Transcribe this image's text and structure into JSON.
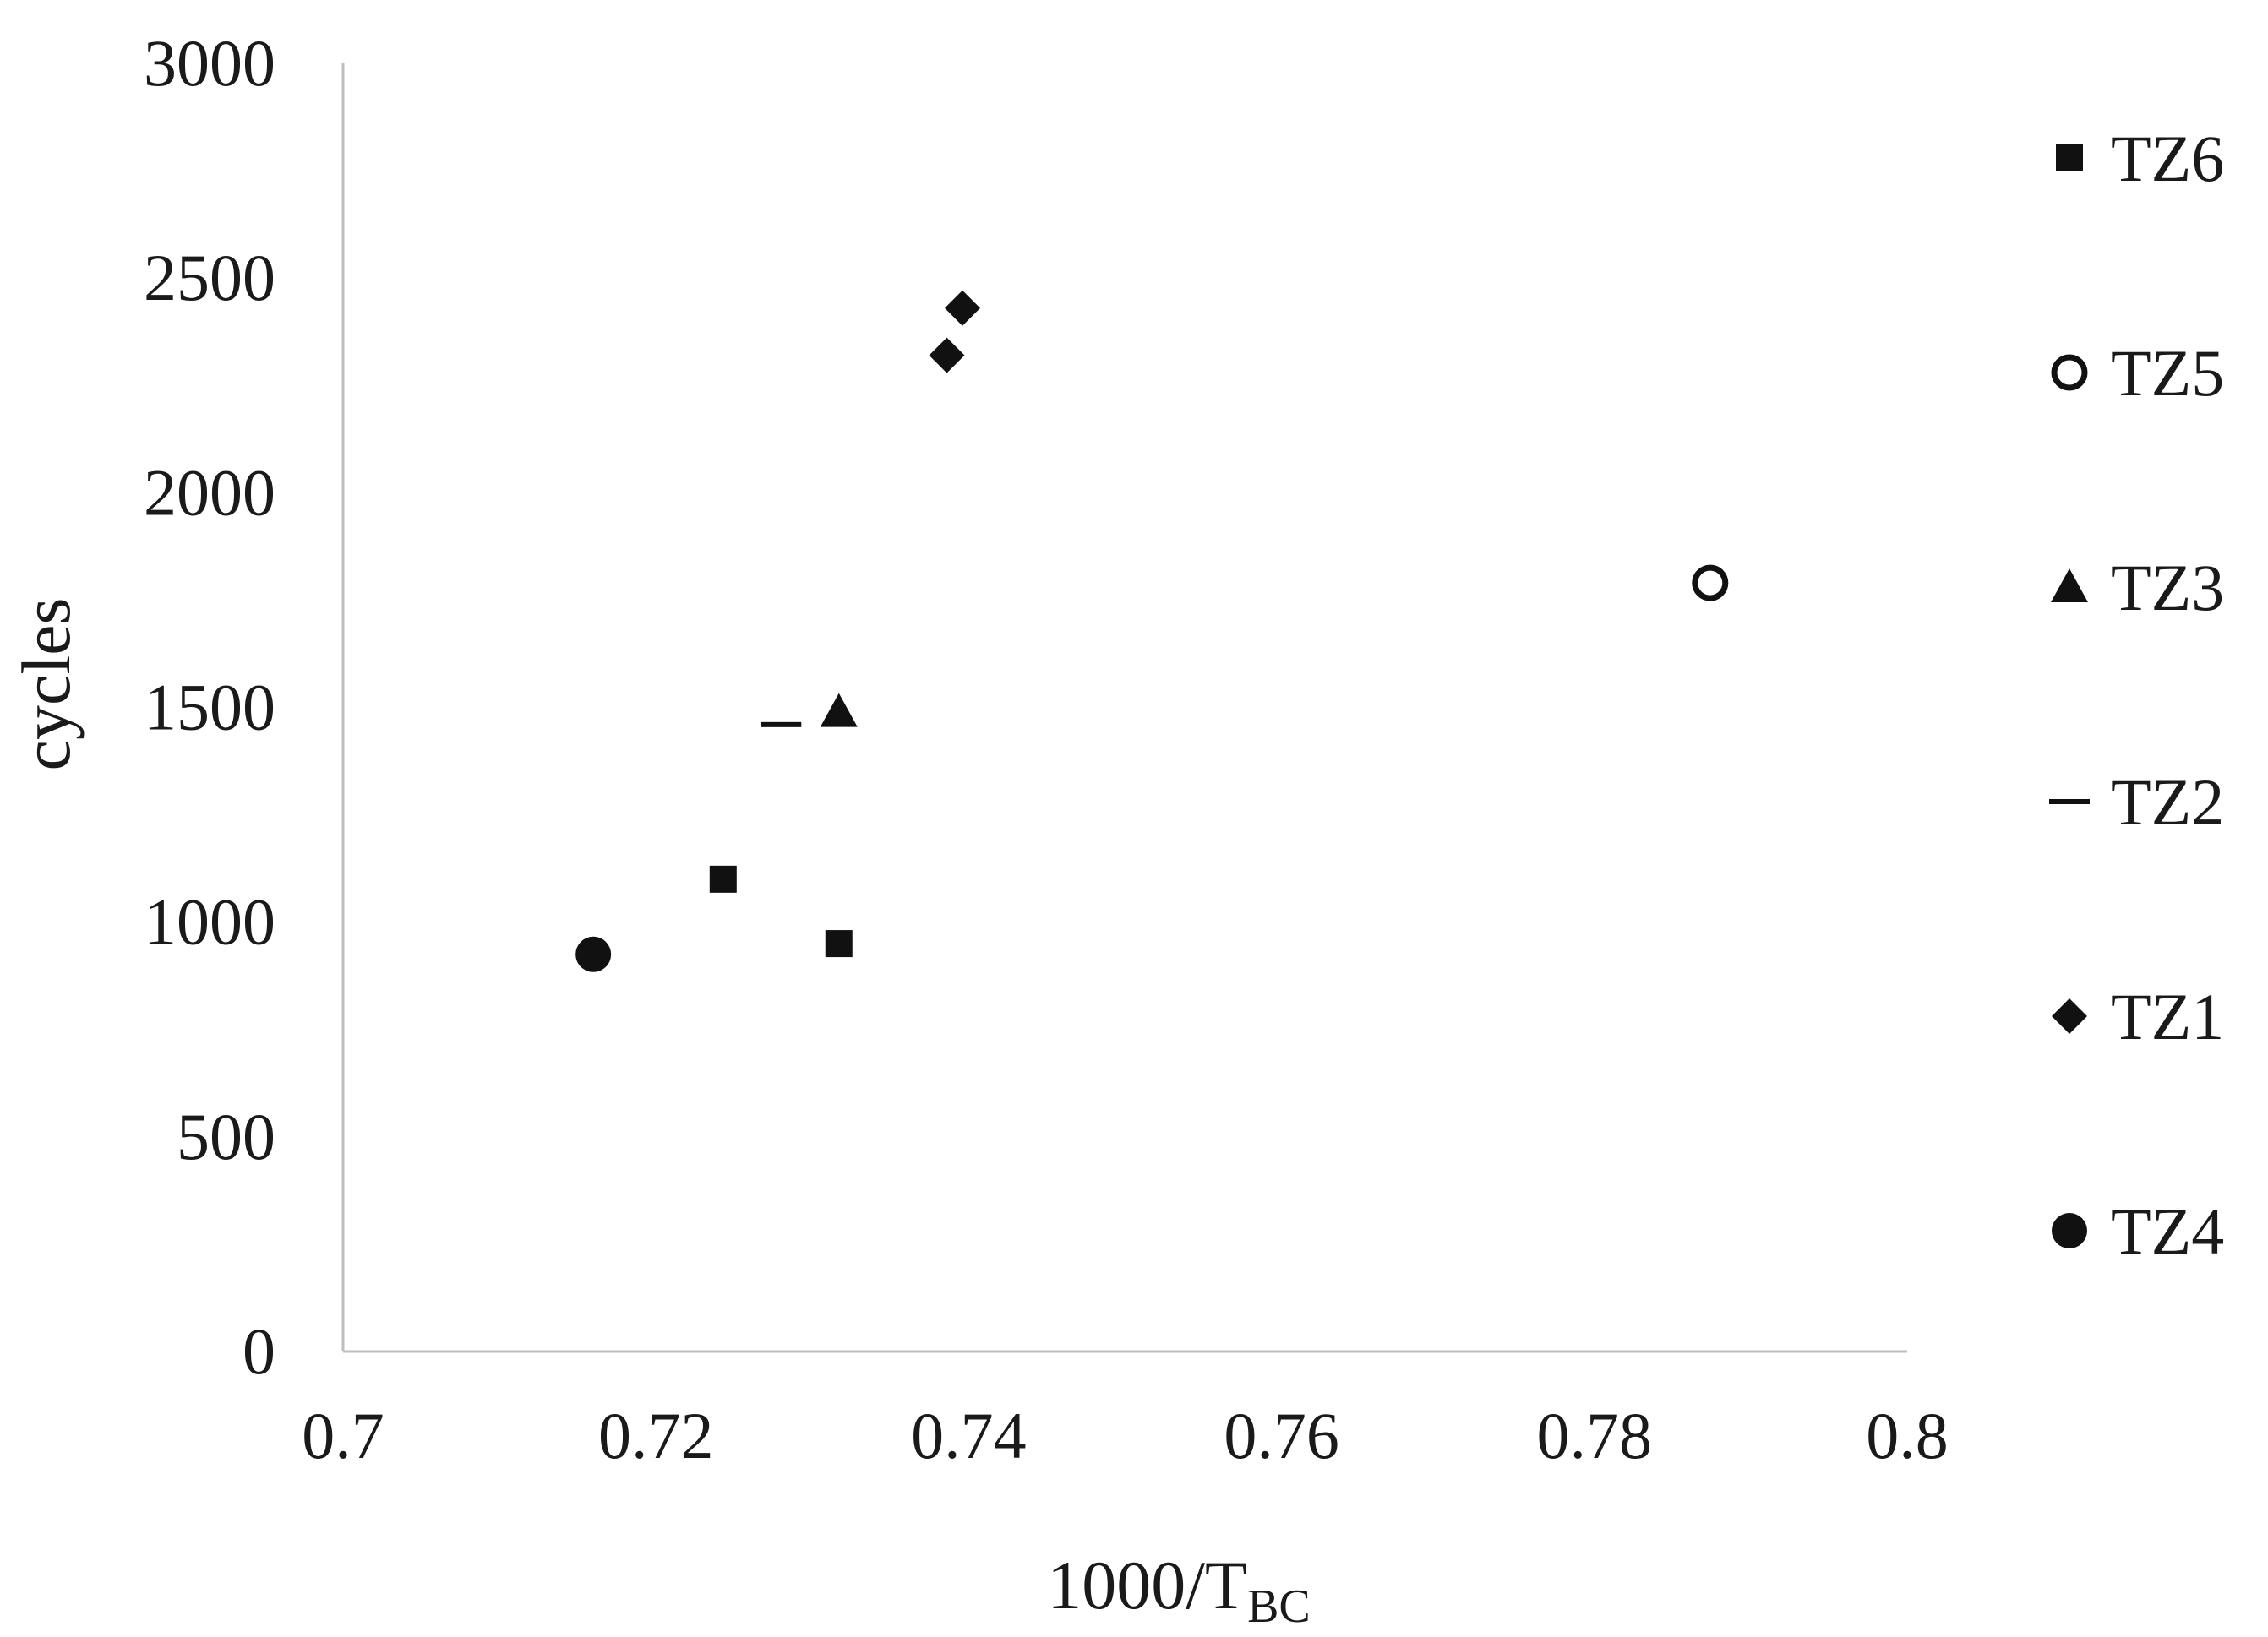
{
  "chart_data": {
    "type": "scatter",
    "title": "",
    "xlabel": "1000/T",
    "xlabel_subscript": "BC",
    "ylabel": "cycles",
    "xlim": [
      0.7,
      0.8
    ],
    "ylim": [
      0,
      3000
    ],
    "xticks": [
      0.7,
      0.72,
      0.74,
      0.76,
      0.78,
      0.8
    ],
    "xtick_labels": [
      "0.7",
      "0.72",
      "0.74",
      "0.76",
      "0.78",
      "0.8"
    ],
    "yticks": [
      0,
      500,
      1000,
      1500,
      2000,
      2500,
      3000
    ],
    "ytick_labels": [
      "0",
      "500",
      "1000",
      "1500",
      "2000",
      "2500",
      "3000"
    ],
    "grid": false,
    "legend_position": "right",
    "series": [
      {
        "name": "TZ6",
        "marker": "square",
        "color": "#111111",
        "points": [
          {
            "x": 0.7243,
            "y": 1100
          },
          {
            "x": 0.7317,
            "y": 950
          }
        ]
      },
      {
        "name": "TZ5",
        "marker": "open-circle",
        "color": "#111111",
        "points": [
          {
            "x": 0.7874,
            "y": 1790
          }
        ]
      },
      {
        "name": "TZ3",
        "marker": "triangle",
        "color": "#111111",
        "points": [
          {
            "x": 0.7317,
            "y": 1490
          }
        ]
      },
      {
        "name": "TZ2",
        "marker": "dash",
        "color": "#111111",
        "points": [
          {
            "x": 0.728,
            "y": 1460
          }
        ]
      },
      {
        "name": "TZ1",
        "marker": "diamond",
        "color": "#111111",
        "points": [
          {
            "x": 0.7386,
            "y": 2320
          },
          {
            "x": 0.7396,
            "y": 2430
          }
        ]
      },
      {
        "name": "TZ4",
        "marker": "filled-circle",
        "color": "#111111",
        "points": [
          {
            "x": 0.716,
            "y": 925
          }
        ]
      }
    ]
  }
}
